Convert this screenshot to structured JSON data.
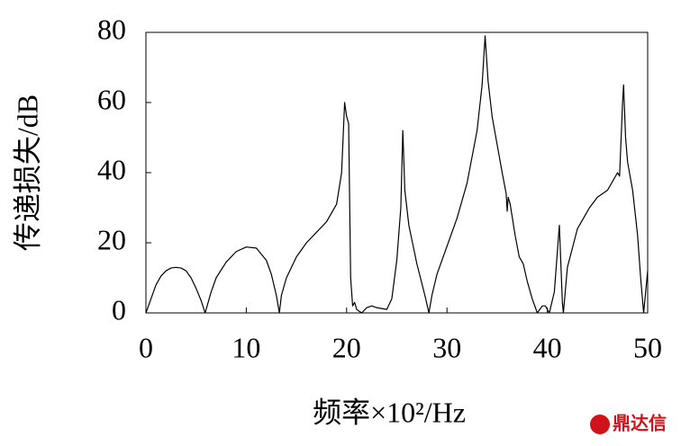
{
  "chart_data": {
    "type": "line",
    "xlabel": "频率×10²/Hz",
    "ylabel": "传递损失/dB",
    "x": [
      0,
      0.5,
      1,
      1.5,
      2,
      2.5,
      3,
      3.5,
      4,
      4.5,
      5,
      5.5,
      5.9,
      6.5,
      7,
      8,
      9,
      10,
      11,
      12,
      12.5,
      13,
      13.3,
      13.5,
      14,
      15,
      16,
      17,
      18,
      19,
      19.5,
      19.8,
      20,
      20.2,
      20.4,
      20.6,
      20.8,
      21,
      21.5,
      22,
      22.5,
      23,
      24,
      24.5,
      25,
      25.4,
      25.6,
      25.8,
      26.2,
      27,
      27.8,
      28.2,
      28.5,
      29,
      30,
      31,
      32,
      33,
      33.5,
      33.8,
      34.1,
      34.5,
      35,
      35.5,
      35.9,
      36,
      36.1,
      36.3,
      36.8,
      37.2,
      37.6,
      38,
      38.5,
      39,
      39.5,
      39.8,
      40.2,
      40.7,
      41.2,
      41.5,
      41.6,
      42,
      43,
      44,
      44.2,
      45,
      46,
      46.6,
      47,
      47.2,
      47.5,
      47.6,
      47.8,
      48,
      48.5,
      49,
      49.3,
      49.6,
      49.8,
      50
    ],
    "values": [
      0,
      4,
      8,
      10.5,
      12,
      12.8,
      13,
      12.8,
      12,
      10,
      7,
      3.5,
      0,
      6,
      10,
      14.5,
      17.5,
      18.8,
      18.5,
      15,
      11,
      5,
      0,
      5,
      10,
      16,
      20,
      23,
      26,
      31,
      40,
      60,
      56,
      54,
      10,
      2,
      3,
      1,
      0,
      1.5,
      2,
      1.5,
      1,
      4,
      15,
      30,
      52,
      35,
      25,
      14,
      5,
      0,
      5,
      11,
      19,
      27,
      37,
      52,
      65,
      79,
      66,
      56,
      48,
      40,
      34,
      29,
      33,
      31,
      22,
      16,
      14,
      9,
      4,
      0,
      2,
      2,
      0,
      6,
      25,
      3,
      0,
      13,
      24,
      29,
      30,
      33,
      35,
      38,
      40,
      39,
      60,
      65,
      50,
      43,
      35,
      22,
      10,
      0,
      6,
      12
    ],
    "color": "#000000",
    "xlim": [
      0,
      50
    ],
    "xticks": [
      0,
      10,
      20,
      30,
      40,
      50
    ],
    "ylim": [
      0,
      80
    ],
    "yticks": [
      0,
      20,
      40,
      60,
      80
    ],
    "grid": false
  },
  "watermark": "鼎达信"
}
